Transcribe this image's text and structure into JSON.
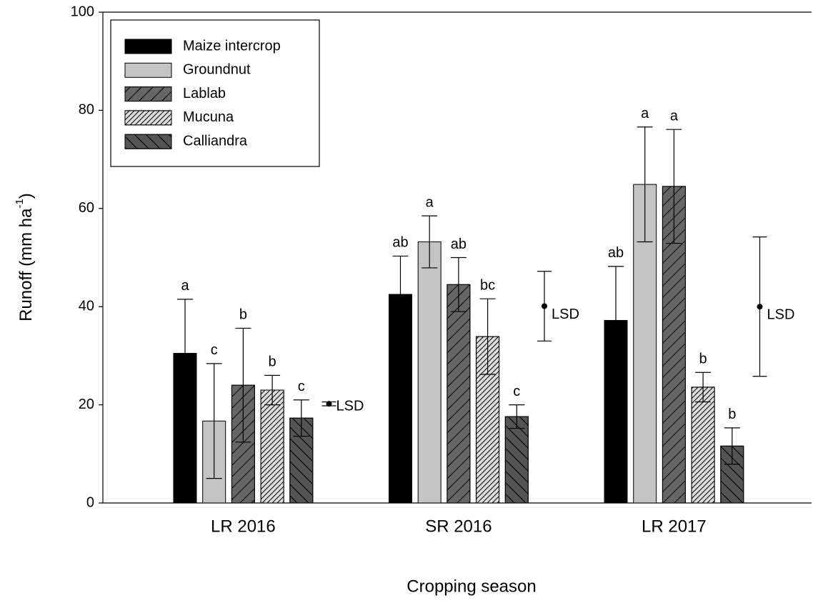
{
  "chart_data": {
    "type": "bar",
    "ylabel": {
      "text": "Runoff (mm ha",
      "sup": "-1",
      "end": ")"
    },
    "xlabel": "Cropping season",
    "categories": [
      "LR 2016",
      "SR 2016",
      "LR 2017"
    ],
    "ylim": [
      0,
      100
    ],
    "yticks": [
      0,
      20,
      40,
      60,
      80,
      100
    ],
    "legend": "top-left",
    "series": [
      {
        "name": "Maize intercrop",
        "color": "#000000",
        "pattern": "none",
        "values": [
          30.5,
          42.5,
          37.2
        ],
        "errors": [
          11,
          7.8,
          11
        ],
        "labels": [
          "a",
          "ab",
          "ab"
        ]
      },
      {
        "name": "Groundnut",
        "color": "#c4c4c4",
        "pattern": "none",
        "values": [
          16.7,
          53.2,
          64.9
        ],
        "errors": [
          11.7,
          5.3,
          11.7
        ],
        "labels": [
          "c",
          "a",
          "a"
        ]
      },
      {
        "name": "Lablab",
        "color": "#666666",
        "pattern": "/",
        "values": [
          24,
          44.5,
          64.5
        ],
        "errors": [
          11.6,
          5.5,
          11.6
        ],
        "labels": [
          "b",
          "ab",
          "a"
        ]
      },
      {
        "name": "Mucuna",
        "color": "#dcdcdc",
        "pattern": "//",
        "values": [
          23,
          33.9,
          23.6
        ],
        "errors": [
          3,
          7.7,
          3
        ],
        "labels": [
          "b",
          "bc",
          "b"
        ]
      },
      {
        "name": "Calliandra",
        "color": "#555555",
        "pattern": "\\",
        "values": [
          17.3,
          17.6,
          11.6
        ],
        "errors": [
          3.7,
          2.4,
          3.7
        ],
        "labels": [
          "c",
          "c",
          "b"
        ]
      }
    ],
    "lsd": {
      "label": "LSD",
      "values": [
        20.2,
        40.1,
        40
      ],
      "errors": [
        0.4,
        7.1,
        14.2
      ]
    }
  }
}
